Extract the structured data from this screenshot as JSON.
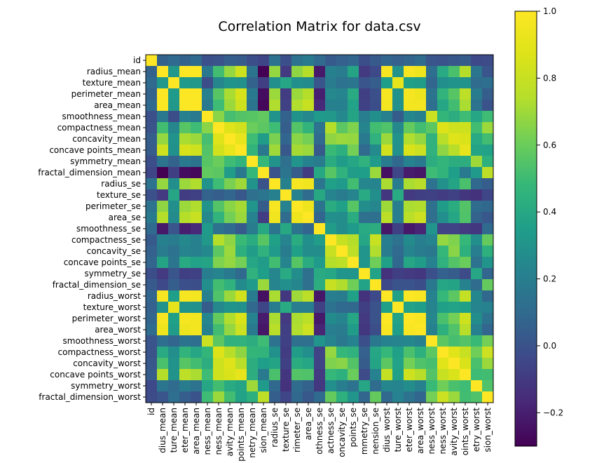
{
  "chart_data": {
    "type": "heatmap",
    "title": "Correlation Matrix for data.csv",
    "xlabel": "",
    "ylabel": "",
    "colormap": "viridis",
    "labels": [
      "id",
      "radius_mean",
      "texture_mean",
      "perimeter_mean",
      "area_mean",
      "smoothness_mean",
      "compactness_mean",
      "concavity_mean",
      "concave points_mean",
      "symmetry_mean",
      "fractal_dimension_mean",
      "radius_se",
      "texture_se",
      "perimeter_se",
      "area_se",
      "smoothness_se",
      "compactness_se",
      "concavity_se",
      "concave points_se",
      "symmetry_se",
      "fractal_dimension_se",
      "radius_worst",
      "texture_worst",
      "perimeter_worst",
      "area_worst",
      "smoothness_worst",
      "compactness_worst",
      "concavity_worst",
      "concave points_worst",
      "symmetry_worst",
      "fractal_dimension_worst"
    ],
    "x_tick_labels_visible": [
      "id",
      "dius_mean",
      "ture_mean",
      "eter_mean",
      "area_mean",
      "ness_mean",
      "ness_mean",
      "avity_mean",
      "points_mean",
      "netry_mean",
      "sion_mean",
      "radius_se",
      "texture_se",
      "rimeter_se",
      "area_se",
      "othness_se",
      "actness_se",
      "oncavity_se",
      "points_se",
      "mmetry_se",
      "nension_se",
      "dius_worst",
      "ture_worst",
      "eter_worst",
      "area_worst",
      "ness_worst",
      "ness_worst",
      "avity_worst",
      "oints_worst",
      "etry_worst",
      "sion_worst"
    ],
    "colorbar": {
      "min": -0.3,
      "max": 1.0,
      "ticks": [
        -0.2,
        0.0,
        0.2,
        0.4,
        0.6,
        0.8,
        1.0
      ],
      "tick_labels": [
        "−0.2",
        "0.0",
        "0.2",
        "0.4",
        "0.6",
        "0.8",
        "1.0"
      ]
    },
    "values": [
      [
        1.0,
        0.07,
        0.1,
        0.07,
        0.1,
        -0.01,
        0.0,
        0.05,
        0.04,
        -0.02,
        -0.05,
        0.14,
        -0.01,
        0.14,
        0.18,
        0.1,
        0.03,
        0.06,
        0.08,
        -0.02,
        0.03,
        0.08,
        0.06,
        0.08,
        0.11,
        0.01,
        0.0,
        0.02,
        0.04,
        -0.04,
        -0.03
      ],
      [
        0.07,
        1.0,
        0.32,
        1.0,
        0.99,
        0.17,
        0.51,
        0.68,
        0.82,
        0.15,
        -0.31,
        0.68,
        -0.1,
        0.67,
        0.74,
        -0.22,
        0.21,
        0.19,
        0.38,
        -0.1,
        -0.04,
        0.97,
        0.3,
        0.97,
        0.94,
        0.12,
        0.41,
        0.53,
        0.74,
        0.16,
        0.01
      ],
      [
        0.1,
        0.32,
        1.0,
        0.33,
        0.32,
        -0.02,
        0.24,
        0.3,
        0.29,
        0.07,
        -0.08,
        0.28,
        0.39,
        0.28,
        0.26,
        0.01,
        0.19,
        0.14,
        0.16,
        0.01,
        0.05,
        0.35,
        0.91,
        0.36,
        0.34,
        0.08,
        0.28,
        0.3,
        0.3,
        0.11,
        0.12
      ],
      [
        0.07,
        1.0,
        0.33,
        1.0,
        0.99,
        0.21,
        0.56,
        0.72,
        0.85,
        0.18,
        -0.26,
        0.69,
        -0.09,
        0.69,
        0.74,
        -0.2,
        0.25,
        0.23,
        0.41,
        -0.08,
        -0.01,
        0.97,
        0.3,
        0.97,
        0.94,
        0.15,
        0.46,
        0.56,
        0.77,
        0.19,
        0.05
      ],
      [
        0.1,
        0.99,
        0.32,
        0.99,
        1.0,
        0.18,
        0.5,
        0.69,
        0.82,
        0.15,
        -0.28,
        0.73,
        -0.07,
        0.73,
        0.8,
        -0.17,
        0.21,
        0.21,
        0.37,
        -0.07,
        -0.02,
        0.96,
        0.29,
        0.96,
        0.96,
        0.12,
        0.39,
        0.51,
        0.72,
        0.14,
        0.0
      ],
      [
        -0.01,
        0.17,
        -0.02,
        0.21,
        0.18,
        1.0,
        0.66,
        0.52,
        0.55,
        0.56,
        0.58,
        0.3,
        0.07,
        0.3,
        0.25,
        0.33,
        0.32,
        0.25,
        0.38,
        0.2,
        0.28,
        0.21,
        0.04,
        0.24,
        0.21,
        0.81,
        0.47,
        0.43,
        0.5,
        0.39,
        0.5
      ],
      [
        0.0,
        0.51,
        0.24,
        0.56,
        0.5,
        0.66,
        1.0,
        0.88,
        0.83,
        0.6,
        0.57,
        0.5,
        0.05,
        0.55,
        0.46,
        0.14,
        0.74,
        0.57,
        0.64,
        0.23,
        0.51,
        0.54,
        0.25,
        0.59,
        0.51,
        0.57,
        0.87,
        0.82,
        0.82,
        0.51,
        0.69
      ],
      [
        0.05,
        0.68,
        0.3,
        0.72,
        0.69,
        0.52,
        0.88,
        1.0,
        0.92,
        0.5,
        0.34,
        0.63,
        0.08,
        0.66,
        0.62,
        0.1,
        0.67,
        0.69,
        0.68,
        0.18,
        0.45,
        0.69,
        0.3,
        0.73,
        0.68,
        0.45,
        0.75,
        0.88,
        0.86,
        0.41,
        0.51
      ],
      [
        0.04,
        0.82,
        0.29,
        0.85,
        0.82,
        0.55,
        0.83,
        0.92,
        1.0,
        0.46,
        0.17,
        0.7,
        0.02,
        0.71,
        0.69,
        0.03,
        0.49,
        0.44,
        0.62,
        0.1,
        0.26,
        0.83,
        0.29,
        0.86,
        0.81,
        0.45,
        0.67,
        0.75,
        0.91,
        0.38,
        0.37
      ],
      [
        -0.02,
        0.15,
        0.07,
        0.18,
        0.15,
        0.56,
        0.6,
        0.5,
        0.46,
        1.0,
        0.48,
        0.3,
        0.13,
        0.31,
        0.22,
        0.19,
        0.42,
        0.34,
        0.39,
        0.45,
        0.33,
        0.19,
        0.09,
        0.22,
        0.18,
        0.43,
        0.47,
        0.43,
        0.43,
        0.7,
        0.44
      ],
      [
        -0.05,
        -0.31,
        -0.08,
        -0.26,
        -0.28,
        0.58,
        0.57,
        0.34,
        0.17,
        0.48,
        1.0,
        0.0,
        0.16,
        0.04,
        -0.09,
        0.4,
        0.56,
        0.45,
        0.34,
        0.35,
        0.69,
        -0.25,
        -0.05,
        -0.21,
        -0.23,
        0.5,
        0.46,
        0.35,
        0.18,
        0.33,
        0.77
      ],
      [
        0.14,
        0.68,
        0.28,
        0.69,
        0.73,
        0.3,
        0.5,
        0.63,
        0.7,
        0.3,
        0.0,
        1.0,
        0.21,
        0.97,
        0.95,
        0.16,
        0.36,
        0.33,
        0.51,
        0.24,
        0.23,
        0.72,
        0.19,
        0.72,
        0.75,
        0.14,
        0.29,
        0.38,
        0.53,
        0.09,
        0.05
      ],
      [
        -0.01,
        -0.1,
        0.39,
        -0.09,
        -0.07,
        0.07,
        0.05,
        0.08,
        0.02,
        0.13,
        0.16,
        0.21,
        1.0,
        0.22,
        0.11,
        0.4,
        0.23,
        0.19,
        0.23,
        0.41,
        0.28,
        -0.11,
        0.41,
        -0.1,
        -0.08,
        -0.07,
        -0.09,
        -0.07,
        -0.12,
        -0.13,
        -0.05
      ],
      [
        0.14,
        0.67,
        0.28,
        0.69,
        0.73,
        0.3,
        0.55,
        0.66,
        0.71,
        0.31,
        0.04,
        0.97,
        0.22,
        1.0,
        0.94,
        0.15,
        0.42,
        0.36,
        0.56,
        0.27,
        0.24,
        0.7,
        0.2,
        0.72,
        0.73,
        0.13,
        0.34,
        0.42,
        0.55,
        0.11,
        0.09
      ],
      [
        0.18,
        0.74,
        0.26,
        0.74,
        0.8,
        0.25,
        0.46,
        0.62,
        0.69,
        0.22,
        -0.09,
        0.95,
        0.11,
        0.94,
        1.0,
        0.08,
        0.28,
        0.27,
        0.42,
        0.13,
        0.13,
        0.76,
        0.2,
        0.76,
        0.81,
        0.13,
        0.28,
        0.39,
        0.54,
        0.07,
        0.02
      ],
      [
        0.1,
        -0.22,
        0.01,
        -0.2,
        -0.17,
        0.33,
        0.14,
        0.1,
        0.03,
        0.19,
        0.4,
        0.16,
        0.4,
        0.15,
        0.08,
        1.0,
        0.34,
        0.27,
        0.33,
        0.41,
        0.43,
        -0.23,
        -0.07,
        -0.22,
        -0.18,
        0.31,
        -0.06,
        -0.06,
        -0.1,
        -0.11,
        0.1
      ],
      [
        0.03,
        0.21,
        0.19,
        0.25,
        0.21,
        0.32,
        0.74,
        0.67,
        0.49,
        0.42,
        0.56,
        0.36,
        0.23,
        0.42,
        0.28,
        0.34,
        1.0,
        0.8,
        0.74,
        0.39,
        0.8,
        0.2,
        0.14,
        0.26,
        0.2,
        0.23,
        0.68,
        0.64,
        0.48,
        0.28,
        0.59
      ],
      [
        0.06,
        0.19,
        0.14,
        0.23,
        0.21,
        0.25,
        0.57,
        0.69,
        0.44,
        0.34,
        0.45,
        0.33,
        0.19,
        0.36,
        0.27,
        0.27,
        0.8,
        1.0,
        0.77,
        0.31,
        0.73,
        0.19,
        0.1,
        0.23,
        0.19,
        0.17,
        0.48,
        0.66,
        0.44,
        0.2,
        0.44
      ],
      [
        0.08,
        0.38,
        0.16,
        0.41,
        0.37,
        0.38,
        0.64,
        0.68,
        0.62,
        0.39,
        0.34,
        0.51,
        0.23,
        0.56,
        0.42,
        0.33,
        0.74,
        0.77,
        1.0,
        0.31,
        0.61,
        0.36,
        0.09,
        0.39,
        0.34,
        0.22,
        0.45,
        0.55,
        0.6,
        0.14,
        0.31
      ],
      [
        -0.02,
        -0.1,
        0.01,
        -0.08,
        -0.07,
        0.2,
        0.23,
        0.18,
        0.1,
        0.45,
        0.35,
        0.24,
        0.41,
        0.27,
        0.13,
        0.41,
        0.39,
        0.31,
        0.31,
        1.0,
        0.37,
        -0.13,
        -0.08,
        -0.1,
        -0.11,
        -0.01,
        0.06,
        0.04,
        -0.03,
        0.39,
        0.08
      ],
      [
        0.03,
        -0.04,
        0.05,
        -0.01,
        -0.02,
        0.28,
        0.51,
        0.45,
        0.26,
        0.33,
        0.69,
        0.23,
        0.28,
        0.24,
        0.13,
        0.43,
        0.8,
        0.73,
        0.61,
        0.37,
        1.0,
        -0.04,
        -0.0,
        -0.0,
        -0.02,
        0.17,
        0.39,
        0.38,
        0.22,
        0.11,
        0.59
      ],
      [
        0.08,
        0.97,
        0.35,
        0.97,
        0.96,
        0.21,
        0.54,
        0.69,
        0.83,
        0.19,
        -0.25,
        0.72,
        -0.11,
        0.7,
        0.76,
        -0.23,
        0.2,
        0.19,
        0.36,
        -0.13,
        -0.04,
        1.0,
        0.36,
        0.99,
        0.98,
        0.22,
        0.48,
        0.57,
        0.79,
        0.24,
        0.09
      ],
      [
        0.06,
        0.3,
        0.91,
        0.3,
        0.29,
        0.04,
        0.25,
        0.3,
        0.29,
        0.09,
        -0.05,
        0.19,
        0.41,
        0.2,
        0.2,
        -0.07,
        0.14,
        0.1,
        0.09,
        -0.08,
        -0.0,
        0.36,
        1.0,
        0.37,
        0.35,
        0.23,
        0.36,
        0.37,
        0.36,
        0.23,
        0.22
      ],
      [
        0.08,
        0.97,
        0.36,
        0.97,
        0.96,
        0.24,
        0.59,
        0.73,
        0.86,
        0.22,
        -0.21,
        0.72,
        -0.1,
        0.72,
        0.76,
        -0.22,
        0.26,
        0.23,
        0.39,
        -0.1,
        -0.0,
        0.99,
        0.37,
        1.0,
        0.98,
        0.24,
        0.53,
        0.62,
        0.82,
        0.27,
        0.14
      ],
      [
        0.11,
        0.94,
        0.34,
        0.94,
        0.96,
        0.21,
        0.51,
        0.68,
        0.81,
        0.18,
        -0.23,
        0.75,
        -0.08,
        0.73,
        0.81,
        -0.18,
        0.2,
        0.19,
        0.34,
        -0.11,
        -0.02,
        0.98,
        0.35,
        0.98,
        1.0,
        0.21,
        0.44,
        0.54,
        0.75,
        0.21,
        0.08
      ],
      [
        0.01,
        0.12,
        0.08,
        0.15,
        0.12,
        0.81,
        0.57,
        0.45,
        0.45,
        0.43,
        0.5,
        0.14,
        -0.07,
        0.13,
        0.13,
        0.31,
        0.23,
        0.17,
        0.22,
        -0.01,
        0.17,
        0.22,
        0.23,
        0.24,
        0.21,
        1.0,
        0.57,
        0.52,
        0.55,
        0.49,
        0.62
      ],
      [
        0.0,
        0.41,
        0.28,
        0.46,
        0.39,
        0.47,
        0.87,
        0.75,
        0.67,
        0.47,
        0.46,
        0.29,
        -0.09,
        0.34,
        0.28,
        -0.06,
        0.68,
        0.48,
        0.45,
        0.06,
        0.39,
        0.48,
        0.36,
        0.53,
        0.44,
        0.57,
        1.0,
        0.89,
        0.8,
        0.61,
        0.81
      ],
      [
        0.02,
        0.53,
        0.3,
        0.56,
        0.51,
        0.43,
        0.82,
        0.88,
        0.75,
        0.43,
        0.35,
        0.38,
        -0.07,
        0.42,
        0.39,
        -0.06,
        0.64,
        0.66,
        0.55,
        0.04,
        0.38,
        0.57,
        0.37,
        0.62,
        0.54,
        0.52,
        0.89,
        1.0,
        0.86,
        0.53,
        0.69
      ],
      [
        0.04,
        0.74,
        0.3,
        0.77,
        0.72,
        0.5,
        0.82,
        0.86,
        0.91,
        0.43,
        0.18,
        0.53,
        -0.12,
        0.55,
        0.54,
        -0.1,
        0.48,
        0.44,
        0.6,
        -0.03,
        0.22,
        0.79,
        0.36,
        0.82,
        0.75,
        0.55,
        0.8,
        0.86,
        1.0,
        0.5,
        0.51
      ],
      [
        -0.04,
        0.16,
        0.11,
        0.19,
        0.14,
        0.39,
        0.51,
        0.41,
        0.38,
        0.7,
        0.33,
        0.09,
        -0.13,
        0.11,
        0.07,
        -0.11,
        0.28,
        0.2,
        0.14,
        0.39,
        0.11,
        0.24,
        0.23,
        0.27,
        0.21,
        0.49,
        0.61,
        0.53,
        0.5,
        1.0,
        0.54
      ],
      [
        -0.03,
        0.01,
        0.12,
        0.05,
        0.0,
        0.5,
        0.69,
        0.51,
        0.37,
        0.44,
        0.77,
        0.05,
        -0.05,
        0.09,
        0.02,
        0.1,
        0.59,
        0.44,
        0.31,
        0.08,
        0.59,
        0.09,
        0.22,
        0.14,
        0.08,
        0.62,
        0.81,
        0.69,
        0.51,
        0.54,
        1.0
      ]
    ]
  }
}
